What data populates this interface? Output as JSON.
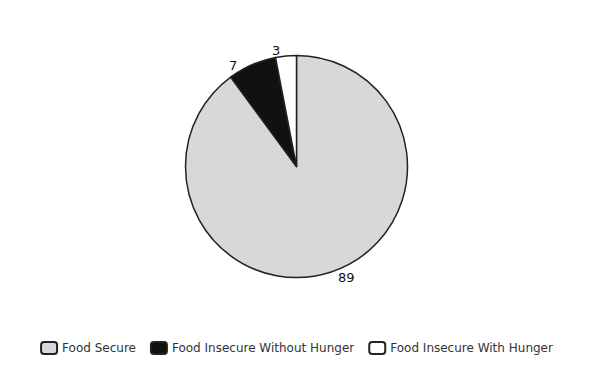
{
  "chart_data": {
    "type": "pie",
    "categories": [
      "Food Secure",
      "Food Insecure Without Hunger",
      "Food Insecure With Hunger"
    ],
    "values": [
      89,
      7,
      3
    ],
    "colors": [
      "#d8d8d8",
      "#111111",
      "#ffffff"
    ],
    "data_labels": true,
    "legend": "bottom"
  }
}
